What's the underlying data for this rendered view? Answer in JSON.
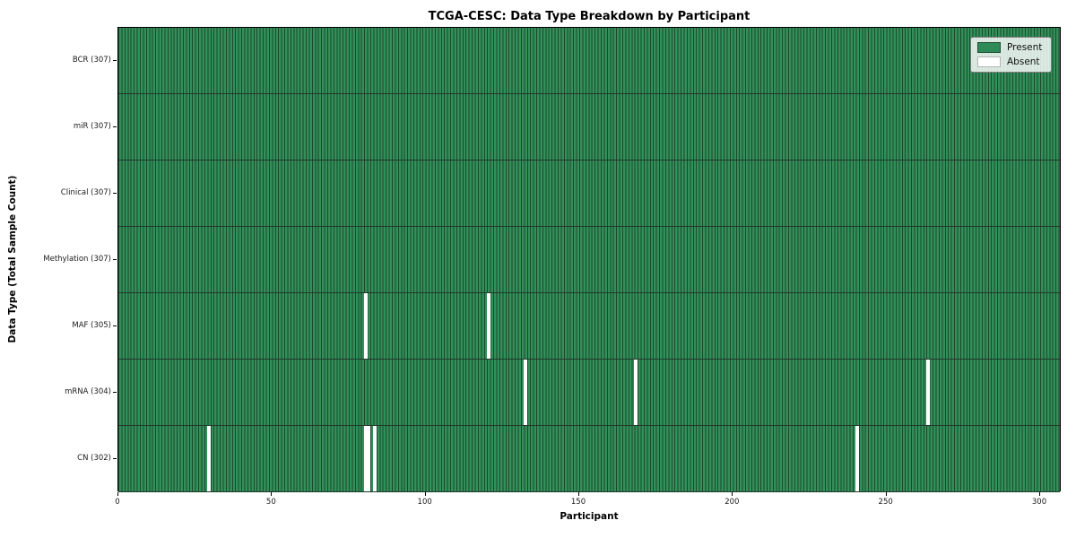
{
  "title": "TCGA-CESC: Data Type Breakdown by Participant",
  "chart_data": {
    "type": "heatmap",
    "title": "TCGA-CESC: Data Type Breakdown by Participant",
    "xlabel": "Participant",
    "ylabel": "Data Type (Total Sample Count)",
    "xlim": [
      0,
      307
    ],
    "x_ticks": [
      0,
      50,
      100,
      150,
      200,
      250,
      300
    ],
    "n_participants": 307,
    "grid": false,
    "legend_position": "upper right",
    "legend": [
      {
        "label": "Present",
        "color": "#2e8b57"
      },
      {
        "label": "Absent",
        "color": "#ffffff"
      }
    ],
    "rows": [
      {
        "label": "BCR (307)",
        "data_type": "BCR",
        "total": 307,
        "absent_participants": []
      },
      {
        "label": "miR (307)",
        "data_type": "miR",
        "total": 307,
        "absent_participants": []
      },
      {
        "label": "Clinical (307)",
        "data_type": "Clinical",
        "total": 307,
        "absent_participants": []
      },
      {
        "label": "Methylation (307)",
        "data_type": "Methylation",
        "total": 307,
        "absent_participants": []
      },
      {
        "label": "MAF (305)",
        "data_type": "MAF",
        "total": 305,
        "absent_participants": [
          80,
          120
        ]
      },
      {
        "label": "mRNA (304)",
        "data_type": "mRNA",
        "total": 304,
        "absent_participants": [
          132,
          168,
          263
        ]
      },
      {
        "label": "CN (302)",
        "data_type": "CN",
        "total": 302,
        "absent_participants": [
          29,
          80,
          81,
          83,
          240
        ]
      }
    ],
    "colors": {
      "present": "#2e8b57",
      "absent": "#ffffff",
      "cell_edge": "#1a4930",
      "row_divider": "#21382b",
      "plot_border": "#000000"
    }
  }
}
